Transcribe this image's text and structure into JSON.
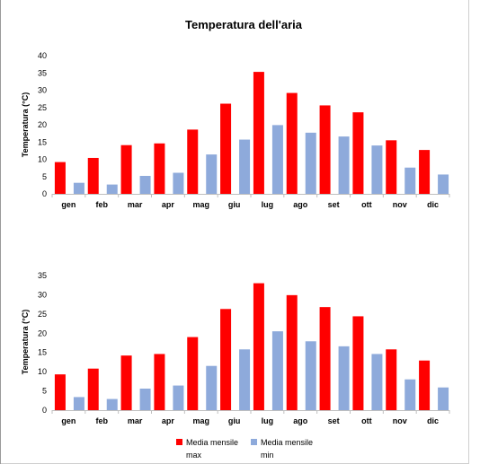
{
  "colors": {
    "max": "#ff0000",
    "min": "#8eaadb",
    "axis": "#bfbfbf"
  },
  "chart_data": [
    {
      "type": "bar",
      "title": "Temperatura dell'aria",
      "ylabel": "Temperatura (°C)",
      "xlabel": "",
      "ylim": [
        0,
        40
      ],
      "yticks": [
        0,
        5,
        10,
        15,
        20,
        25,
        30,
        35,
        40
      ],
      "categories": [
        "gen",
        "feb",
        "mar",
        "apr",
        "mag",
        "giu",
        "lug",
        "ago",
        "set",
        "ott",
        "nov",
        "dic"
      ],
      "series": [
        {
          "key": "max",
          "values": [
            9.2,
            10.4,
            14.1,
            14.6,
            18.6,
            26.1,
            35.3,
            29.2,
            25.6,
            23.6,
            15.5,
            12.7
          ]
        },
        {
          "key": "min",
          "values": [
            3.2,
            2.7,
            5.2,
            6.1,
            11.4,
            15.7,
            19.9,
            17.7,
            16.6,
            14.0,
            7.6,
            5.6
          ]
        }
      ],
      "grid": false,
      "legend": "none"
    },
    {
      "type": "bar",
      "title": "",
      "ylabel": "Temperatura (°C)",
      "xlabel": "",
      "ylim": [
        0,
        35
      ],
      "yticks": [
        0,
        5,
        10,
        15,
        20,
        25,
        30,
        35
      ],
      "categories": [
        "gen",
        "feb",
        "mar",
        "apr",
        "mag",
        "giu",
        "lug",
        "ago",
        "set",
        "ott",
        "nov",
        "dic"
      ],
      "series": [
        {
          "key": "max",
          "name": "Media mensile max",
          "values": [
            9.3,
            10.8,
            14.2,
            14.6,
            19.0,
            26.3,
            33.0,
            29.9,
            26.8,
            24.4,
            15.8,
            12.9
          ]
        },
        {
          "key": "min",
          "name": "Media mensile min",
          "values": [
            3.4,
            2.9,
            5.6,
            6.4,
            11.5,
            15.8,
            20.5,
            17.9,
            16.6,
            14.6,
            8.0,
            5.9
          ]
        }
      ],
      "grid": false,
      "legend": "bottom",
      "legend_labels": [
        {
          "line1": "Media mensile",
          "line2": "max"
        },
        {
          "line1": "Media mensile",
          "line2": "min"
        }
      ]
    }
  ]
}
